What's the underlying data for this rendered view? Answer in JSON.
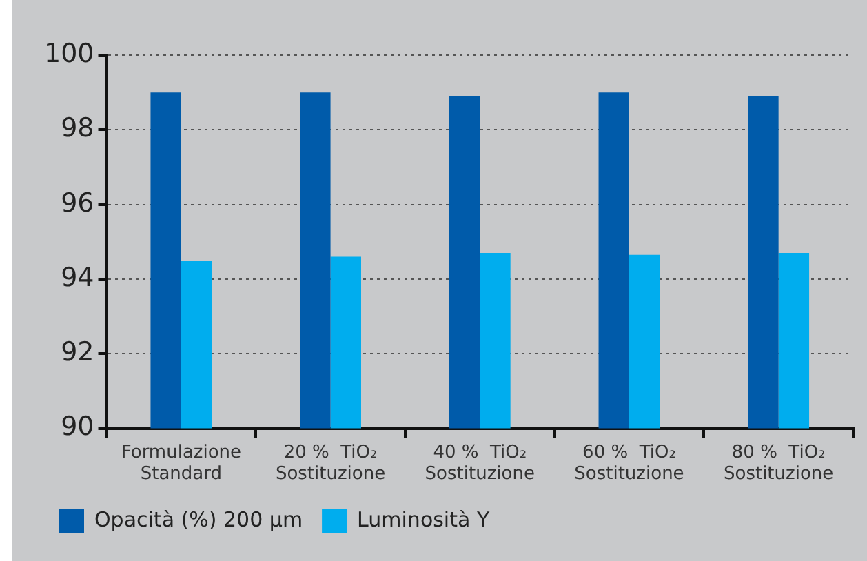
{
  "chart_data": {
    "type": "bar",
    "categories": [
      "Formulazione\nStandard",
      "20 %  TiO₂\nSostituzione",
      "40 %  TiO₂\nSostituzione",
      "60 %  TiO₂\nSostituzione",
      "80 %  TiO₂\nSostituzione"
    ],
    "series": [
      {
        "name": "Opacità (%) 200 µm",
        "color": "#005baa",
        "values": [
          99.0,
          99.0,
          98.9,
          99.0,
          98.9
        ]
      },
      {
        "name": "Luminosità Y",
        "color": "#00adee",
        "values": [
          94.5,
          94.6,
          94.7,
          94.65,
          94.7
        ]
      }
    ],
    "ylim": [
      90,
      100
    ],
    "yticks": [
      90,
      92,
      94,
      96,
      98,
      100
    ],
    "grid": "y",
    "legend": "bottom left"
  }
}
